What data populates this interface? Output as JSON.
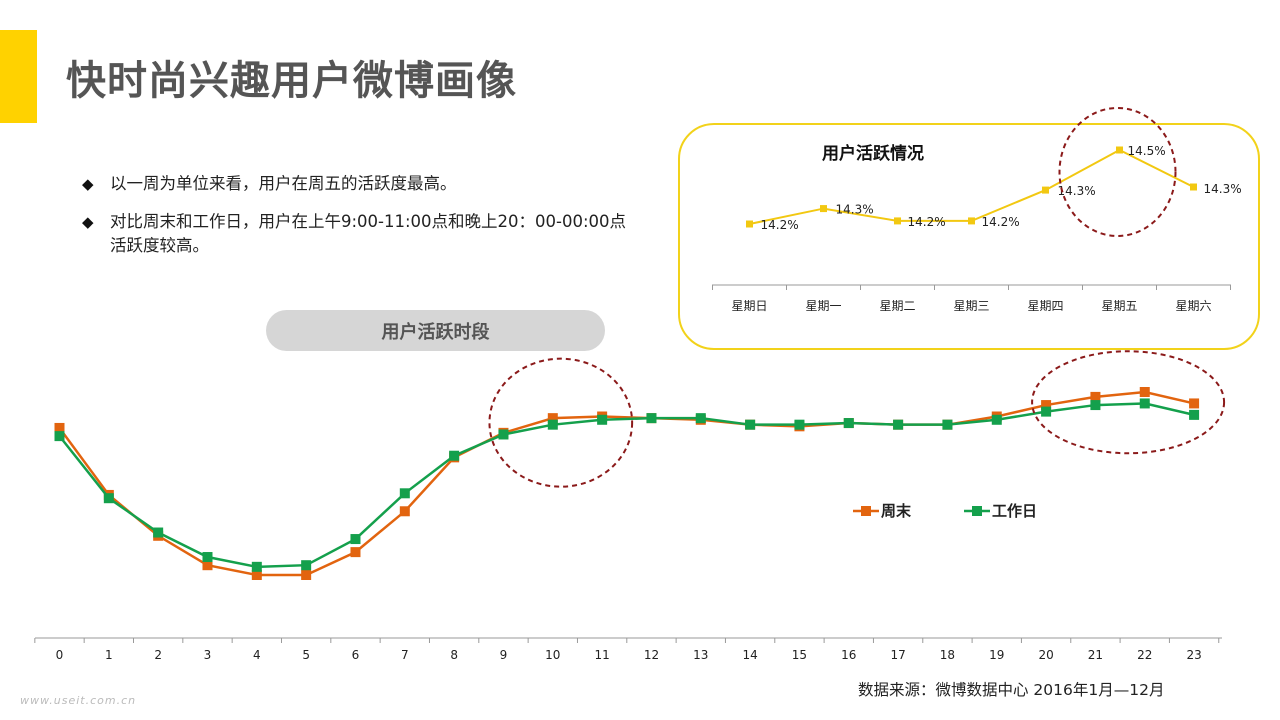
{
  "title": "快时尚兴趣用户微博画像",
  "bullets": [
    "以一周为单位来看，用户在周五的活跃度最高。",
    "对比周末和工作日，用户在上午9:00-11:00点和晚上20：00-00:00点活跃度较高。"
  ],
  "bullet_marker": "◆",
  "pill_label": "用户活跃时段",
  "source": "数据来源：微博数据中心 2016年1月—12月",
  "watermark": "www.useit.com.cn",
  "colors": {
    "accent": "#FFD200",
    "weekend": "#E2640F",
    "weekday": "#14A04C",
    "inset_line": "#F2C811",
    "highlight_circle": "#8B1A1A"
  },
  "chart_data": [
    {
      "id": "hourly",
      "type": "line",
      "title": "",
      "x": [
        0,
        1,
        2,
        3,
        4,
        5,
        6,
        7,
        8,
        9,
        10,
        11,
        12,
        13,
        14,
        15,
        16,
        17,
        18,
        19,
        20,
        21,
        22,
        23
      ],
      "series": [
        {
          "name": "周末",
          "values": [
            44.5,
            24.0,
            11.5,
            2.5,
            -0.5,
            -0.5,
            6.5,
            19.0,
            35.5,
            43.0,
            47.5,
            48.0,
            47.5,
            47.0,
            45.5,
            45.0,
            46.0,
            45.5,
            45.5,
            48.0,
            51.5,
            54.0,
            55.5,
            52.0
          ]
        },
        {
          "name": "工作日",
          "values": [
            42.0,
            23.0,
            12.5,
            5.0,
            2.0,
            2.5,
            10.5,
            24.5,
            36.0,
            42.5,
            45.5,
            47.0,
            47.5,
            47.5,
            45.5,
            45.5,
            46.0,
            45.5,
            45.5,
            47.0,
            49.5,
            51.5,
            52.0,
            48.5
          ]
        }
      ],
      "ylim": [
        -5,
        60
      ],
      "legend": "right-middle",
      "grid": false,
      "highlights": [
        {
          "x_range": [
            9,
            11
          ]
        },
        {
          "x_range": [
            20,
            23
          ]
        }
      ]
    },
    {
      "id": "weekly",
      "type": "line",
      "title": "用户活跃情况",
      "categories": [
        "星期日",
        "星期一",
        "星期二",
        "星期三",
        "星期四",
        "星期五",
        "星期六"
      ],
      "values": [
        14.2,
        14.3,
        14.2,
        14.2,
        14.3,
        14.5,
        14.3
      ],
      "plot_values": [
        14.22,
        14.27,
        14.23,
        14.23,
        14.33,
        14.46,
        14.34
      ],
      "labels": [
        "14.2%",
        "14.3%",
        "14.2%",
        "14.2%",
        "14.3%",
        "14.5%",
        "14.3%"
      ],
      "ylim": [
        13.9,
        14.55
      ],
      "grid": false,
      "highlights": [
        {
          "category": "星期五"
        }
      ]
    }
  ]
}
